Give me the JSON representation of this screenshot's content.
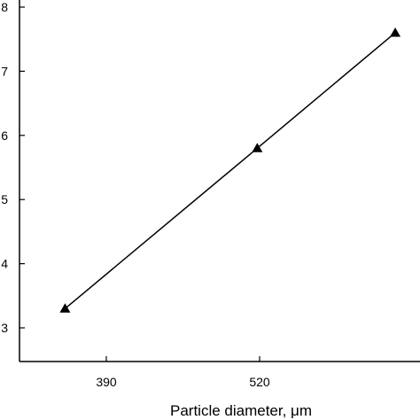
{
  "chart_data": {
    "type": "line",
    "xlabel": "Particle diameter, μm",
    "ylabel": "",
    "x_ticks": [
      390,
      520
    ],
    "y_ticks": [
      3,
      4,
      5,
      6,
      7,
      8
    ],
    "xlim": [
      325,
      600
    ],
    "ylim": [
      2.6,
      8.2
    ],
    "series": [
      {
        "marker": "triangle",
        "color": "#000000",
        "x": [
          355,
          518,
          635
        ],
        "y": [
          3.3,
          5.8,
          7.6
        ]
      }
    ]
  }
}
